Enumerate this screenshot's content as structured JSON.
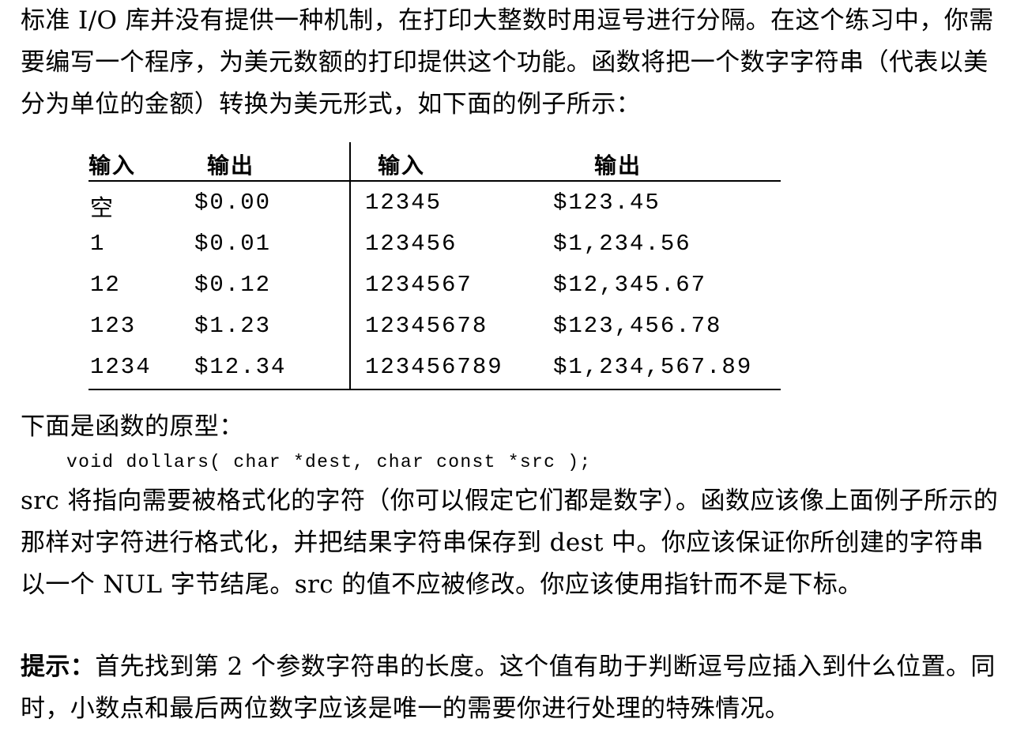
{
  "intro": {
    "text": "标准 I/O 库并没有提供一种机制，在打印大整数时用逗号进行分隔。在这个练习中，你需要编写一个程序，为美元数额的打印提供这个功能。函数将把一个数字字符串（代表以美分为单位的金额）转换为美元形式，如下面的例子所示："
  },
  "table": {
    "headers": [
      "输入",
      "输出",
      "输入",
      "输出"
    ],
    "left_rows": [
      {
        "input": "空",
        "output": "$0.00"
      },
      {
        "input": "1",
        "output": "$0.01"
      },
      {
        "input": "12",
        "output": "$0.12"
      },
      {
        "input": "123",
        "output": "$1.23"
      },
      {
        "input": "1234",
        "output": "$12.34"
      }
    ],
    "right_rows": [
      {
        "input": "12345",
        "output": "$123.45"
      },
      {
        "input": "123456",
        "output": "$1,234.56"
      },
      {
        "input": "1234567",
        "output": "$12,345.67"
      },
      {
        "input": "12345678",
        "output": "$123,456.78"
      },
      {
        "input": "123456789",
        "output": "$1,234,567.89"
      }
    ]
  },
  "prototype": {
    "label": "下面是函数的原型：",
    "code": "void dollars( char *dest, char const *src );"
  },
  "description": {
    "text": "src 将指向需要被格式化的字符（你可以假定它们都是数字）。函数应该像上面例子所示的那样对字符进行格式化，并把结果字符串保存到 dest 中。你应该保证你所创建的字符串以一个 NUL 字节结尾。src 的值不应被修改。你应该使用指针而不是下标。"
  },
  "hint": {
    "label": "提示：",
    "text": "首先找到第 2 个参数字符串的长度。这个值有助于判断逗号应插入到什么位置。同时，小数点和最后两位数字应该是唯一的需要你进行处理的特殊情况。"
  }
}
